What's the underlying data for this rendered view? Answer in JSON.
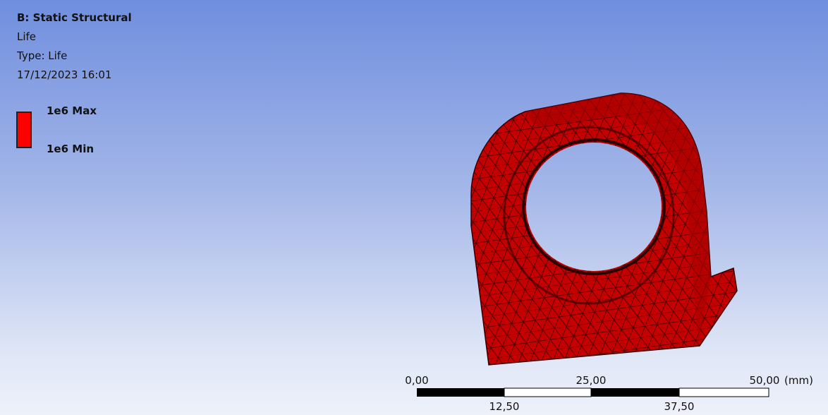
{
  "header": {
    "title": "B: Static Structural",
    "result": "Life",
    "type": "Type: Life",
    "date": "17/12/2023 16:01"
  },
  "legend": {
    "max": "1e6 Max",
    "min": "1e6 Min"
  },
  "scale_bar": {
    "top_labels": [
      "0,00",
      "25,00",
      "50,00"
    ],
    "unit": "(mm)",
    "bottom_labels": [
      "12,50",
      "37,50"
    ]
  }
}
